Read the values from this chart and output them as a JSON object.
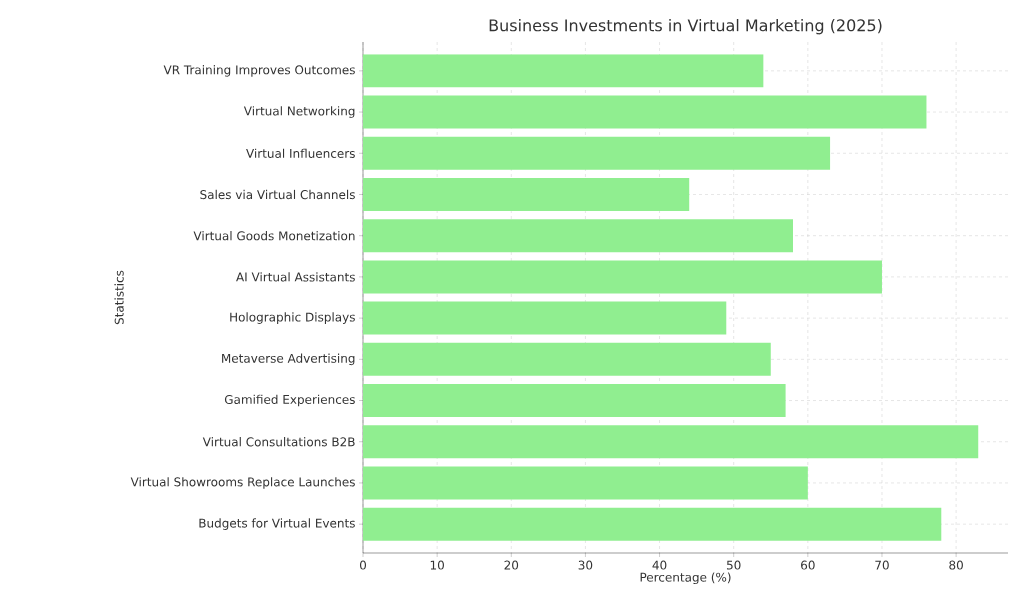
{
  "chart_data": {
    "type": "bar",
    "orientation": "horizontal",
    "title": "Business Investments in Virtual Marketing (2025)",
    "xlabel": "Percentage (%)",
    "ylabel": "Statistics",
    "categories": [
      "VR Training Improves Outcomes",
      "Virtual Networking",
      "Virtual Influencers",
      "Sales via Virtual Channels",
      "Virtual Goods Monetization",
      "AI Virtual Assistants",
      "Holographic Displays",
      "Metaverse Advertising",
      "Gamified Experiences",
      "Virtual Consultations B2B",
      "Virtual Showrooms Replace Launches",
      "Budgets for Virtual Events"
    ],
    "values": [
      54,
      76,
      63,
      44,
      58,
      70,
      49,
      55,
      57,
      83,
      60,
      78
    ],
    "color": "#90ee90",
    "xlim": [
      0,
      87
    ],
    "xticks": [
      0,
      10,
      20,
      30,
      40,
      50,
      60,
      70,
      80
    ],
    "grid": true
  }
}
